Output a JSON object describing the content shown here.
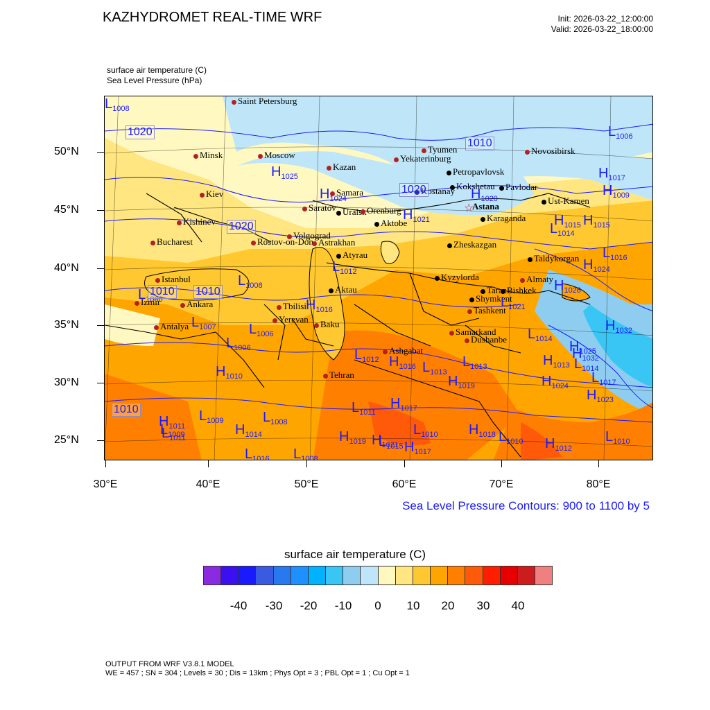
{
  "header": {
    "title": "KAZHYDROMET REAL-TIME WRF",
    "init": "Init: 2026-03-22_12:00:00",
    "valid": "Valid: 2026-03-22_18:00:00"
  },
  "fields": {
    "line1": "surface air temperature   (C)",
    "line2": "Sea Level Pressure   (hPa)"
  },
  "axes": {
    "lat_labels": [
      "50°N",
      "45°N",
      "40°N",
      "35°N",
      "30°N",
      "25°N"
    ],
    "lon_labels": [
      "30°E",
      "40°E",
      "50°E",
      "60°E",
      "70°E",
      "80°E"
    ]
  },
  "slp_note": "Sea Level Pressure Contours: 900 to 1100 by 5",
  "colorbar": {
    "title": "surface air temperature  (C)",
    "labels": [
      "-40",
      "-30",
      "-20",
      "-10",
      "0",
      "10",
      "20",
      "30",
      "40"
    ],
    "colors": [
      "#8a2be2",
      "#3a10f0",
      "#1a1aff",
      "#3a5ae0",
      "#2878f0",
      "#1e90ff",
      "#00b2ff",
      "#3ac6f5",
      "#8ecdf0",
      "#bfe6f8",
      "#fff8c0",
      "#ffe680",
      "#ffc830",
      "#ffa500",
      "#ff8000",
      "#ff5a0a",
      "#ff1e00",
      "#e60000",
      "#cc1c1c",
      "#f08080"
    ]
  },
  "footer": {
    "line1": "OUTPUT FROM WRF V3.8.1 MODEL",
    "line2": "WE = 457 ; SN = 304 ; Levels = 30 ; Dis = 13km ; Phys Opt = 3 ; PBL Opt = 1 ; Cu Opt = 1"
  },
  "cities": {
    "saint_petersburg": "Saint Petersburg",
    "minsk": "Minsk",
    "moscow": "Moscow",
    "kazan": "Kazan",
    "yekaterinburg": "Yekaterinburg",
    "tyumen": "Tyumen",
    "novosibirsk": "Novosibirsk",
    "petropavlovsk": "Petropavlovsk",
    "kokshetau": "Kokshetau",
    "kostanay": "Kostanay",
    "pavlodar": "Pavlodar",
    "astana": "Astana",
    "ust_kamen": "Ust-Kamen",
    "kiev": "Kiev",
    "samara": "Samara",
    "saratov": "Saratov",
    "uralsk": "Uralsk",
    "orenburg": "Orenburg",
    "aktobe": "Aktobe",
    "karaganda": "Karaganda",
    "kishinev": "Kishinev",
    "volgograd": "Volgograd",
    "bucharest": "Bucharest",
    "rostov": "Rostov-on-Don",
    "astrakhan": "Astrakhan",
    "zheskazgan": "Zheskazgan",
    "atyrau": "Atyrau",
    "taldykorgan": "Taldykorgan",
    "istanbul": "Istanbul",
    "kyzylorda": "Kyzylorda",
    "almaty": "Almaty",
    "aktau": "Aktau",
    "taraz": "Taraz",
    "bishkek": "Bishkek",
    "izmir": "Izmir",
    "ankara": "Ankara",
    "tbilisi": "Tbilisi",
    "shymkent": "Shymkent",
    "tashkent": "Tashkent",
    "yerevan": "Yerevan",
    "baku": "Baku",
    "antalya": "Antalya",
    "samarkand": "Samarkand",
    "dushanbe": "Dushanbe",
    "ashgabat": "Ashgabat",
    "tehran": "Tehran"
  },
  "pressure_centers": [
    {
      "t": "H",
      "v": "1025"
    },
    {
      "t": "H",
      "v": "1024"
    },
    {
      "t": "H",
      "v": "1021"
    },
    {
      "t": "H",
      "v": "1020"
    },
    {
      "t": "H",
      "v": "1017"
    },
    {
      "t": "L",
      "v": "1006"
    },
    {
      "t": "H",
      "v": "1009"
    },
    {
      "t": "H",
      "v": "1015"
    },
    {
      "t": "H",
      "v": "1015"
    },
    {
      "t": "L",
      "v": "1014"
    },
    {
      "t": "L",
      "v": "1016"
    },
    {
      "t": "H",
      "v": "1024"
    },
    {
      "t": "L",
      "v": "1012"
    },
    {
      "t": "L",
      "v": "1008"
    },
    {
      "t": "H",
      "v": "1016"
    },
    {
      "t": "L",
      "v": "1006"
    },
    {
      "t": "L",
      "v": "1007"
    },
    {
      "t": "L",
      "v": "1006"
    },
    {
      "t": "L",
      "v": "1006"
    },
    {
      "t": "L",
      "v": "1014"
    },
    {
      "t": "H",
      "v": "1026"
    },
    {
      "t": "L",
      "v": "1021"
    },
    {
      "t": "H",
      "v": "1010"
    },
    {
      "t": "L",
      "v": "1012"
    },
    {
      "t": "H",
      "v": "1016"
    },
    {
      "t": "L",
      "v": "1013"
    },
    {
      "t": "L",
      "v": "1013"
    },
    {
      "t": "H",
      "v": "1019"
    },
    {
      "t": "H",
      "v": "1013"
    },
    {
      "t": "L",
      "v": "1014"
    },
    {
      "t": "H",
      "v": "1025"
    },
    {
      "t": "H",
      "v": "1032"
    },
    {
      "t": "H",
      "v": "1032"
    },
    {
      "t": "L",
      "v": "1017"
    },
    {
      "t": "H",
      "v": "1024"
    },
    {
      "t": "H",
      "v": "1023"
    },
    {
      "t": "L",
      "v": "1011"
    },
    {
      "t": "L",
      "v": "1009"
    },
    {
      "t": "L",
      "v": "1008"
    },
    {
      "t": "H",
      "v": "1011"
    },
    {
      "t": "L",
      "v": "1009"
    },
    {
      "t": "H",
      "v": "1014"
    },
    {
      "t": "L",
      "v": "1011"
    },
    {
      "t": "H",
      "v": "1017"
    },
    {
      "t": "L",
      "v": "1010"
    },
    {
      "t": "H",
      "v": "1019"
    },
    {
      "t": "H",
      "v": "1021"
    },
    {
      "t": "L",
      "v": "1015"
    },
    {
      "t": "H",
      "v": "1017"
    },
    {
      "t": "H",
      "v": "1018"
    },
    {
      "t": "L",
      "v": "1010"
    },
    {
      "t": "H",
      "v": "1012"
    },
    {
      "t": "L",
      "v": "1010"
    },
    {
      "t": "L",
      "v": "1016"
    },
    {
      "t": "L",
      "v": "1008"
    },
    {
      "t": "L",
      "v": "1008"
    }
  ],
  "isobar_labels": [
    "1020",
    "1010",
    "1020",
    "1020",
    "1010",
    "1010",
    "1010"
  ]
}
